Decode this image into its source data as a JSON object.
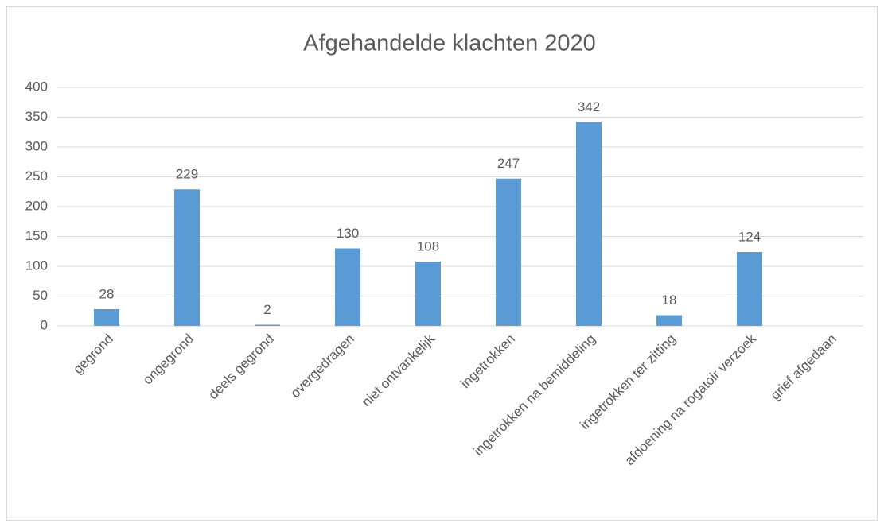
{
  "chart_data": {
    "type": "bar",
    "title": "Afgehandelde klachten 2020",
    "categories": [
      "gegrond",
      "ongegrond",
      "deels gegrond",
      "overgedragen",
      "niet ontvankelijk",
      "ingetrokken",
      "ingetrokken na bemiddeling",
      "ingetrokken ter zitting",
      "afdoening na rogatoir verzoek",
      "grief afgedaan"
    ],
    "values": [
      28,
      229,
      2,
      130,
      108,
      247,
      342,
      18,
      124,
      null
    ],
    "color": "#5b9bd5",
    "ylim": [
      0,
      400
    ],
    "yticks": [
      0,
      50,
      100,
      150,
      200,
      250,
      300,
      350,
      400
    ],
    "grid": true
  }
}
